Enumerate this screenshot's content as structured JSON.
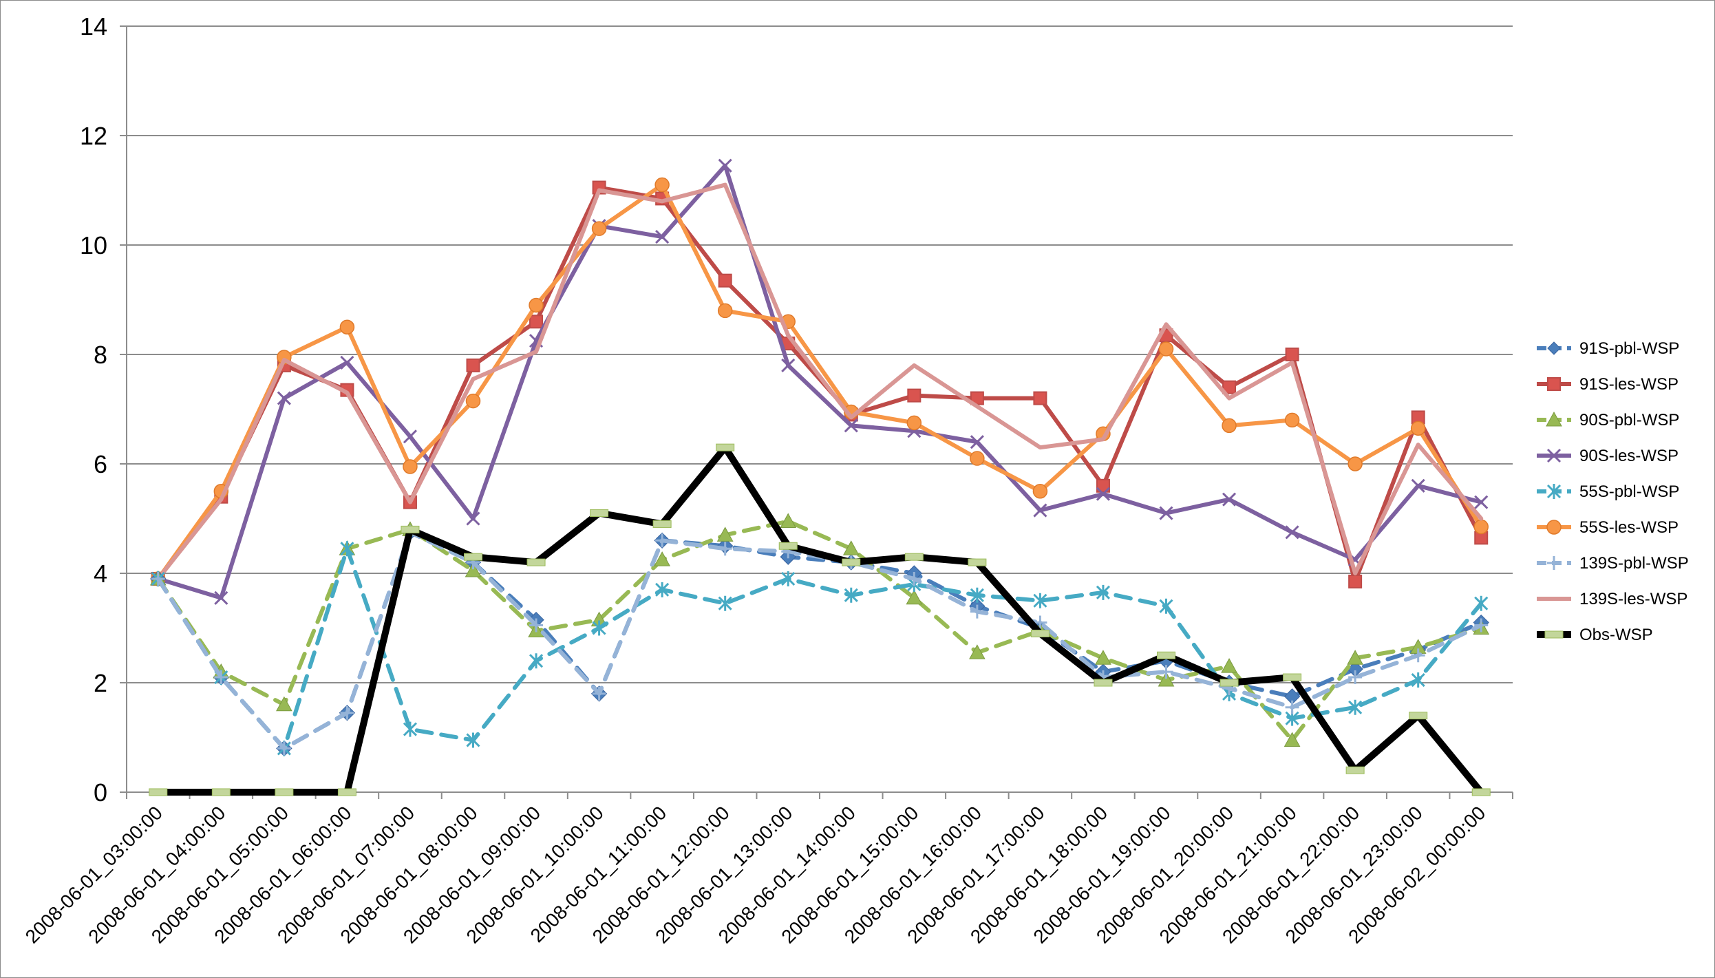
{
  "chart_data": {
    "type": "line",
    "title": "",
    "xlabel": "",
    "ylabel": "",
    "ylim": [
      0,
      14
    ],
    "y_ticks": [
      "0",
      "2",
      "4",
      "6",
      "8",
      "10",
      "12",
      "14"
    ],
    "grid": "horizontal",
    "legend_position": "right",
    "categories": [
      "2008-06-01_03:00:00",
      "2008-06-01_04:00:00",
      "2008-06-01_05:00:00",
      "2008-06-01_06:00:00",
      "2008-06-01_07:00:00",
      "2008-06-01_08:00:00",
      "2008-06-01_09:00:00",
      "2008-06-01_10:00:00",
      "2008-06-01_11:00:00",
      "2008-06-01_12:00:00",
      "2008-06-01_13:00:00",
      "2008-06-01_14:00:00",
      "2008-06-01_15:00:00",
      "2008-06-01_16:00:00",
      "2008-06-01_17:00:00",
      "2008-06-01_18:00:00",
      "2008-06-01_19:00:00",
      "2008-06-01_20:00:00",
      "2008-06-01_21:00:00",
      "2008-06-01_22:00:00",
      "2008-06-01_23:00:00",
      "2008-06-02_00:00:00"
    ],
    "series": [
      {
        "name": "91S-pbl-WSP",
        "color": "#4a7ebb",
        "dash": true,
        "marker": "diamond",
        "values": [
          3.9,
          2.1,
          0.8,
          1.45,
          4.75,
          4.2,
          3.15,
          1.8,
          4.6,
          4.5,
          4.3,
          4.2,
          4.0,
          3.4,
          3.0,
          2.2,
          2.4,
          2.0,
          1.75,
          2.25,
          2.6,
          3.1
        ]
      },
      {
        "name": "91S-les-WSP",
        "color": "#be4b48",
        "dash": false,
        "marker": "square",
        "values": [
          3.9,
          5.4,
          7.8,
          7.35,
          5.3,
          7.8,
          8.6,
          11.05,
          10.85,
          9.35,
          8.2,
          6.9,
          7.25,
          7.2,
          7.2,
          5.6,
          8.35,
          7.4,
          8.0,
          3.85,
          6.85,
          4.65
        ]
      },
      {
        "name": "90S-pbl-WSP",
        "color": "#98b954",
        "dash": true,
        "marker": "triangle",
        "values": [
          3.9,
          2.2,
          1.6,
          4.45,
          4.8,
          4.05,
          2.95,
          3.15,
          4.25,
          4.7,
          4.95,
          4.45,
          3.55,
          2.55,
          2.95,
          2.45,
          2.05,
          2.3,
          0.95,
          2.45,
          2.65,
          3.0
        ]
      },
      {
        "name": "90S-les-WSP",
        "color": "#7d60a0",
        "dash": false,
        "marker": "x",
        "values": [
          3.9,
          3.55,
          7.2,
          7.85,
          6.5,
          5.0,
          8.25,
          10.35,
          10.15,
          11.45,
          7.8,
          6.7,
          6.6,
          6.4,
          5.15,
          5.45,
          5.1,
          5.35,
          4.75,
          4.25,
          5.6,
          5.3
        ]
      },
      {
        "name": "55S-pbl-WSP",
        "color": "#46aac4",
        "dash": true,
        "marker": "star",
        "values": [
          3.9,
          2.1,
          0.8,
          4.45,
          1.15,
          0.95,
          2.4,
          3.0,
          3.7,
          3.45,
          3.9,
          3.6,
          3.8,
          3.6,
          3.5,
          3.65,
          3.4,
          1.8,
          1.35,
          1.55,
          2.05,
          3.45
        ]
      },
      {
        "name": "55S-les-WSP",
        "color": "#f79646",
        "dash": false,
        "marker": "circle",
        "values": [
          3.9,
          5.5,
          7.95,
          8.5,
          5.95,
          7.15,
          8.9,
          10.3,
          11.1,
          8.8,
          8.6,
          6.95,
          6.75,
          6.1,
          5.5,
          6.55,
          8.1,
          6.7,
          6.8,
          6.0,
          6.65,
          4.85
        ]
      },
      {
        "name": "139S-pbl-WSP",
        "color": "#95b3d7",
        "dash": true,
        "marker": "plus",
        "values": [
          3.9,
          2.1,
          0.8,
          1.45,
          4.75,
          4.2,
          3.05,
          1.8,
          4.6,
          4.45,
          4.4,
          4.2,
          3.9,
          3.3,
          3.1,
          2.1,
          2.2,
          1.9,
          1.55,
          2.1,
          2.5,
          3.05
        ]
      },
      {
        "name": "139S-les-WSP",
        "color": "#d99694",
        "dash": false,
        "marker": "none",
        "values": [
          3.9,
          5.35,
          7.9,
          7.3,
          5.3,
          7.55,
          8.05,
          11.0,
          10.8,
          11.1,
          8.35,
          6.85,
          7.8,
          7.05,
          6.3,
          6.45,
          8.55,
          7.2,
          7.85,
          4.0,
          6.35,
          5.0
        ]
      },
      {
        "name": "Obs-WSP",
        "color": "#000000",
        "dash": false,
        "marker": "dash",
        "values": [
          0,
          0,
          0,
          0,
          4.8,
          4.3,
          4.2,
          5.1,
          4.9,
          6.3,
          4.5,
          4.2,
          4.3,
          4.2,
          2.9,
          2.0,
          2.5,
          2.0,
          2.1,
          0.4,
          1.4,
          0
        ]
      }
    ]
  }
}
